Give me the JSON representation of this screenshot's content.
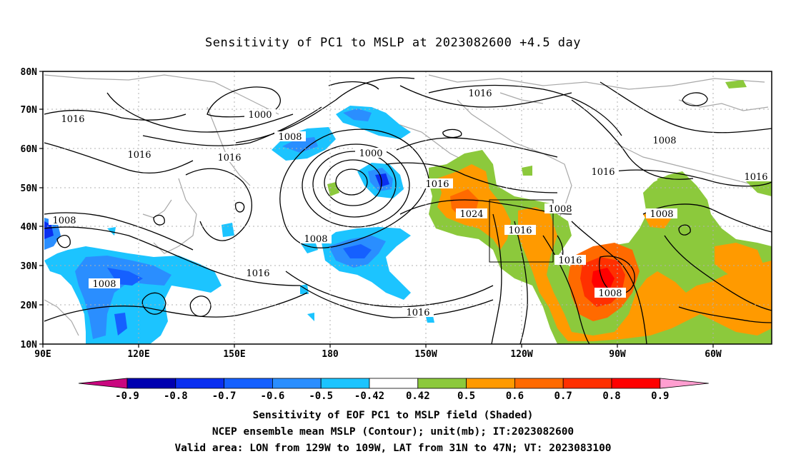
{
  "title": "Sensitivity of PC1 to MSLP at 2023082600 +4.5 day",
  "lat_labels": [
    "80N",
    "70N",
    "60N",
    "50N",
    "40N",
    "30N",
    "20N",
    "10N"
  ],
  "lon_labels": [
    "90E",
    "120E",
    "150E",
    "180",
    "150W",
    "120W",
    "90W",
    "60W"
  ],
  "contour_labels": [
    "1016",
    "1000",
    "1016",
    "1008",
    "1016",
    "1008",
    "1000",
    "1016",
    "1016",
    "1008",
    "1016",
    "1016",
    "1008",
    "1024",
    "1008",
    "1016",
    "1008",
    "1016",
    "1008",
    "1016",
    "1008",
    "1016"
  ],
  "colorbar": {
    "labels": [
      "-0.9",
      "-0.8",
      "-0.7",
      "-0.6",
      "-0.5",
      "-0.42",
      "0.42",
      "0.5",
      "0.6",
      "0.7",
      "0.8",
      "0.9"
    ],
    "colors": [
      "#c9077f",
      "#0000b0",
      "#0a2ff0",
      "#1560ff",
      "#2a8eff",
      "#1cc4ff",
      "#ffffff",
      "#8cc93c",
      "#ff9a00",
      "#ff6a00",
      "#ff3000",
      "#ff0000",
      "#ff9ed0"
    ]
  },
  "caption": {
    "line1": "Sensitivity of EOF PC1 to MSLP field (Shaded)",
    "line2": "NCEP ensemble mean MSLP (Contour); unit(mb); IT:2023082600",
    "line3": "Valid area: LON from 129W to 109W, LAT from 31N to 47N; VT: 2023083100"
  }
}
